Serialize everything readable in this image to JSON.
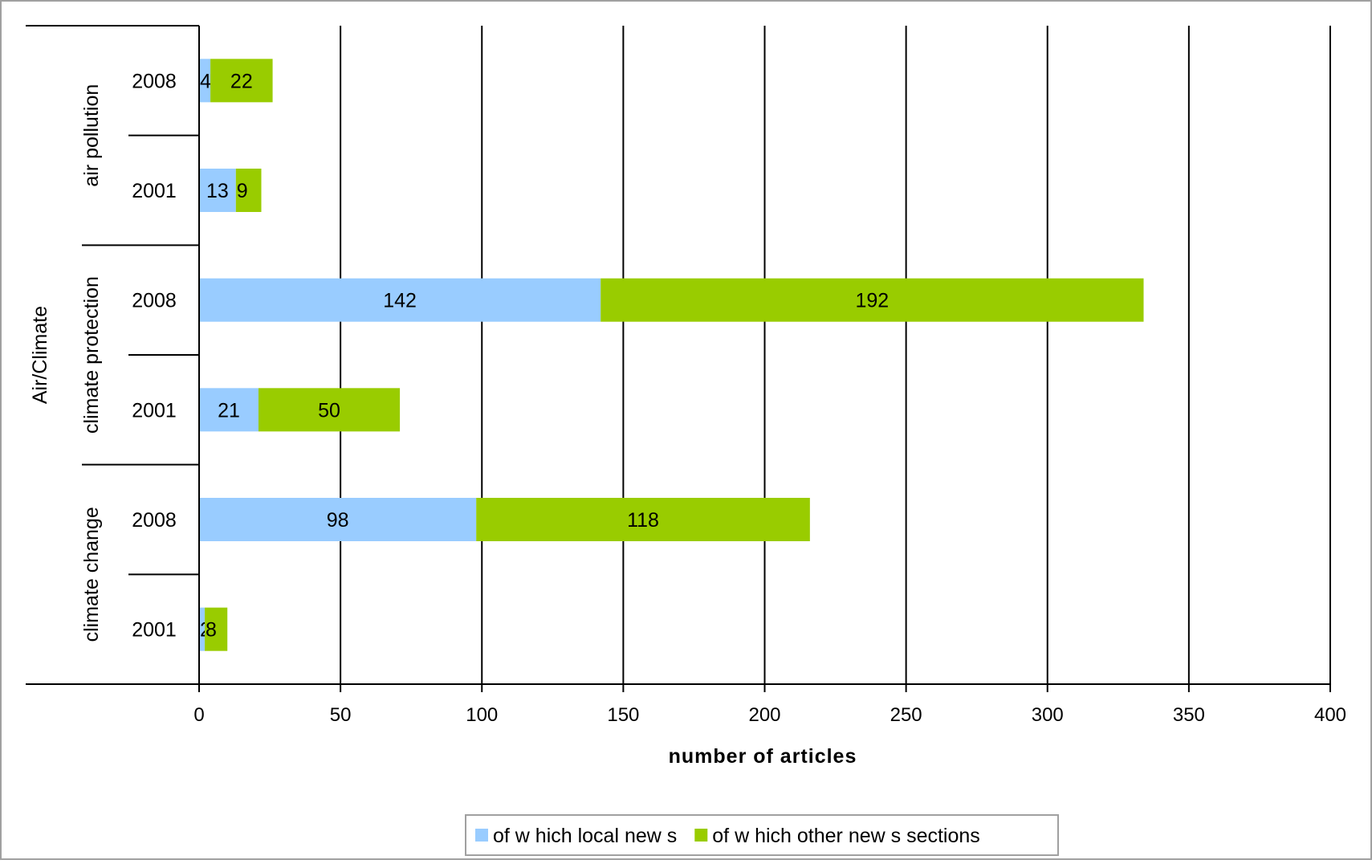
{
  "chart_data": {
    "type": "bar",
    "orientation": "horizontal",
    "stacked": true,
    "xlabel": "number of articles",
    "xlim": [
      0,
      400
    ],
    "xticks": [
      0,
      50,
      100,
      150,
      200,
      250,
      300,
      350,
      400
    ],
    "grid": true,
    "legend_position": "bottom",
    "group_label": "Air/Climate",
    "groups": [
      {
        "label": "air pollution",
        "rows": [
          "2008",
          "2001"
        ]
      },
      {
        "label": "climate protection",
        "rows": [
          "2008",
          "2001"
        ]
      },
      {
        "label": "climate change",
        "rows": [
          "2008",
          "2001"
        ]
      }
    ],
    "categories": [
      "air pollution 2008",
      "air pollution 2001",
      "climate protection 2008",
      "climate protection 2001",
      "climate change 2008",
      "climate change 2001"
    ],
    "series": [
      {
        "name": "of w hich local new s",
        "color": "#99ccff",
        "values": [
          4,
          13,
          142,
          21,
          98,
          2
        ]
      },
      {
        "name": "of w hich other new s sections",
        "color": "#99cc00",
        "values": [
          22,
          9,
          192,
          50,
          118,
          8
        ]
      }
    ]
  }
}
